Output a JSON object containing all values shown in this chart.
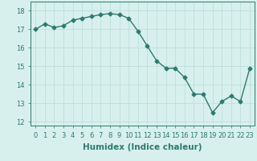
{
  "x": [
    0,
    1,
    2,
    3,
    4,
    5,
    6,
    7,
    8,
    9,
    10,
    11,
    12,
    13,
    14,
    15,
    16,
    17,
    18,
    19,
    20,
    21,
    22,
    23
  ],
  "y": [
    17.0,
    17.3,
    17.1,
    17.2,
    17.5,
    17.6,
    17.7,
    17.8,
    17.85,
    17.8,
    17.6,
    16.9,
    16.1,
    15.3,
    14.9,
    14.9,
    14.4,
    13.5,
    13.5,
    12.5,
    13.1,
    13.4,
    13.1,
    14.9
  ],
  "xlabel": "Humidex (Indice chaleur)",
  "xlim": [
    -0.5,
    23.5
  ],
  "ylim": [
    11.8,
    18.5
  ],
  "yticks": [
    12,
    13,
    14,
    15,
    16,
    17,
    18
  ],
  "xticks": [
    0,
    1,
    2,
    3,
    4,
    5,
    6,
    7,
    8,
    9,
    10,
    11,
    12,
    13,
    14,
    15,
    16,
    17,
    18,
    19,
    20,
    21,
    22,
    23
  ],
  "line_color": "#2d7a6e",
  "bg_color": "#d8f0ed",
  "grid_color": "#b8dcd6",
  "marker": "D",
  "marker_size": 2.5,
  "line_width": 1.0,
  "xlabel_fontsize": 7.5,
  "tick_fontsize": 6.0
}
